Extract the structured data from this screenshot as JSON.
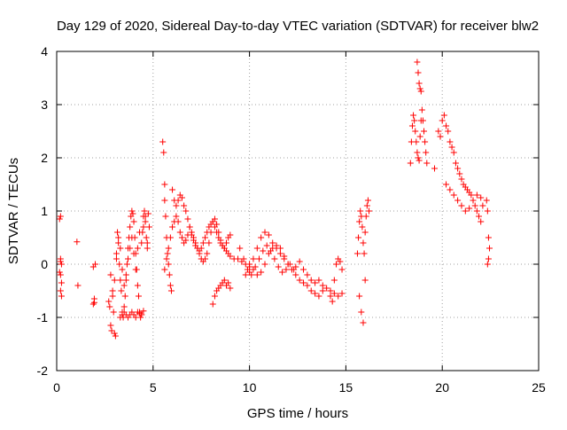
{
  "chart_data": {
    "type": "scatter",
    "title": "Day 129 of 2020, Sidereal Day-to-day VTEC variation (SDTVAR) for receiver blw2",
    "xlabel": "GPS time / hours",
    "ylabel": "SDTVAR / TECUs",
    "xlim": [
      0,
      25
    ],
    "ylim": [
      -2,
      4
    ],
    "xticks": [
      0,
      5,
      10,
      15,
      20,
      25
    ],
    "yticks": [
      -2,
      -1,
      0,
      1,
      2,
      3,
      4
    ],
    "grid": true,
    "marker": "+",
    "series_color": "#ff0000",
    "series": [
      {
        "name": "SDTVAR",
        "x": [
          0.15,
          0.2,
          0.2,
          0.25,
          0.2,
          0.25,
          0.2,
          0.25,
          0.2,
          0.15,
          1.05,
          1.1,
          1.9,
          1.95,
          1.9,
          2.0,
          1.95,
          2.7,
          2.75,
          2.8,
          2.85,
          2.9,
          2.95,
          3.0,
          3.05,
          3.1,
          3.15,
          3.2,
          3.25,
          3.3,
          3.35,
          3.4,
          3.45,
          3.5,
          3.55,
          3.6,
          3.65,
          3.7,
          3.75,
          3.8,
          3.85,
          3.9,
          3.95,
          4.0,
          4.05,
          4.1,
          4.15,
          4.2,
          4.25,
          4.3,
          4.35,
          4.4,
          4.45,
          4.5,
          4.55,
          4.6,
          4.65,
          4.7,
          4.75,
          4.8,
          2.8,
          2.9,
          3.0,
          3.1,
          3.2,
          3.3,
          3.4,
          3.5,
          3.6,
          3.7,
          3.8,
          3.9,
          4.0,
          4.1,
          4.2,
          4.3,
          4.4,
          4.5,
          4.6,
          4.7,
          3.3,
          3.4,
          3.5,
          3.6,
          3.7,
          3.8,
          3.9,
          4.0,
          4.1,
          4.2,
          4.3,
          4.4,
          4.5,
          5.5,
          5.55,
          5.6,
          5.6,
          5.65,
          5.7,
          5.75,
          5.8,
          5.85,
          5.9,
          5.95,
          6.0,
          6.1,
          6.2,
          6.3,
          6.4,
          6.5,
          6.6,
          6.7,
          6.8,
          6.9,
          7.0,
          7.1,
          7.2,
          7.3,
          7.4,
          7.5,
          7.6,
          7.7,
          7.8,
          7.9,
          8.0,
          8.1,
          8.2,
          8.3,
          8.4,
          8.5,
          8.6,
          8.7,
          8.8,
          8.9,
          9.0,
          9.2,
          9.4,
          9.6,
          9.8,
          10.0,
          5.6,
          5.7,
          5.8,
          5.9,
          6.0,
          6.1,
          6.2,
          6.3,
          6.4,
          6.5,
          6.6,
          6.7,
          6.8,
          6.9,
          7.0,
          7.1,
          7.2,
          7.3,
          7.4,
          7.5,
          7.6,
          7.7,
          7.8,
          7.9,
          8.0,
          8.1,
          8.2,
          8.3,
          8.4,
          8.5,
          8.6,
          8.7,
          8.8,
          8.9,
          9.0,
          8.1,
          8.2,
          8.3,
          8.4,
          8.5,
          8.6,
          8.7,
          8.8,
          8.9,
          9.0,
          9.8,
          10.0,
          10.2,
          10.4,
          10.6,
          10.8,
          11.0,
          11.2,
          11.4,
          11.6,
          11.8,
          12.0,
          12.2,
          12.4,
          12.6,
          12.8,
          13.0,
          13.2,
          13.4,
          13.6,
          13.8,
          14.0,
          14.2,
          14.4,
          14.6,
          14.8,
          10.0,
          10.2,
          10.4,
          10.6,
          10.8,
          11.0,
          11.2,
          11.4,
          11.6,
          11.8,
          12.0,
          12.2,
          12.4,
          12.6,
          12.8,
          13.0,
          13.2,
          13.4,
          13.6,
          13.8,
          9.5,
          9.7,
          9.9,
          10.1,
          10.3,
          10.5,
          10.7,
          10.9,
          11.1,
          11.3,
          11.5,
          11.7,
          11.9,
          12.1,
          12.3,
          14.2,
          14.3,
          14.4,
          14.5,
          14.6,
          14.7,
          14.8,
          15.6,
          15.65,
          15.7,
          15.75,
          15.8,
          15.85,
          15.9,
          15.95,
          16.0,
          16.05,
          16.1,
          16.15,
          16.2,
          15.7,
          15.8,
          15.9,
          16.0,
          18.35,
          18.4,
          18.45,
          18.5,
          18.55,
          18.6,
          18.65,
          18.7,
          18.75,
          18.8,
          18.85,
          18.9,
          18.95,
          19.0,
          19.05,
          19.1,
          19.15,
          19.2,
          18.7,
          18.75,
          18.8,
          18.85,
          18.9,
          19.6,
          19.8,
          19.9,
          20.0,
          20.1,
          20.2,
          20.3,
          20.4,
          20.5,
          20.6,
          20.7,
          20.8,
          20.9,
          21.0,
          21.1,
          21.2,
          21.3,
          21.4,
          21.5,
          21.6,
          21.7,
          21.8,
          21.9,
          22.0,
          22.1,
          20.2,
          20.4,
          20.6,
          20.8,
          21.0,
          21.2,
          21.4,
          21.6,
          21.8,
          22.0,
          22.3,
          22.35,
          22.4,
          22.45,
          22.4,
          22.35
        ],
        "y": [
          0.85,
          0.9,
          0.1,
          0.0,
          -0.2,
          -0.35,
          -0.5,
          -0.6,
          0.05,
          -0.15,
          0.42,
          -0.4,
          -0.05,
          -0.65,
          -0.75,
          0.0,
          -0.72,
          -0.7,
          -0.8,
          -1.15,
          -1.25,
          -0.6,
          -0.9,
          -1.3,
          -1.35,
          0.1,
          0.6,
          0.4,
          0.0,
          -0.3,
          -0.5,
          -0.9,
          -1.0,
          -0.8,
          -0.6,
          -0.3,
          0.0,
          0.3,
          0.5,
          0.7,
          0.9,
          1.0,
          0.95,
          0.8,
          0.5,
          0.2,
          -0.1,
          -0.4,
          -0.6,
          -0.9,
          -1.0,
          -0.95,
          0.6,
          0.9,
          1.0,
          0.8,
          0.5,
          0.3,
          0.95,
          0.7,
          -0.2,
          -0.5,
          -0.3,
          0.2,
          0.5,
          0.3,
          -0.1,
          -0.4,
          -0.2,
          0.1,
          0.3,
          0.5,
          0.2,
          -0.1,
          0.3,
          0.6,
          0.4,
          0.7,
          0.9,
          0.4,
          -1.0,
          -0.95,
          -0.9,
          -0.95,
          -1.0,
          -0.95,
          -0.9,
          -0.95,
          -1.0,
          -0.9,
          -0.92,
          -0.95,
          -0.88,
          2.3,
          2.1,
          1.5,
          1.2,
          0.9,
          0.5,
          0.2,
          0.0,
          -0.2,
          -0.4,
          -0.5,
          1.4,
          1.2,
          1.1,
          1.2,
          1.3,
          1.25,
          1.1,
          1.0,
          0.85,
          0.7,
          0.55,
          0.45,
          0.35,
          0.3,
          0.25,
          0.3,
          0.4,
          0.5,
          0.6,
          0.7,
          0.75,
          0.8,
          0.7,
          0.6,
          0.5,
          0.4,
          0.35,
          0.3,
          0.25,
          0.2,
          0.15,
          0.1,
          0.1,
          0.05,
          0.0,
          -0.05,
          -0.1,
          0.1,
          0.3,
          0.5,
          0.7,
          0.8,
          0.9,
          0.8,
          0.6,
          0.5,
          0.4,
          0.45,
          0.55,
          0.7,
          0.6,
          0.5,
          0.4,
          0.3,
          0.2,
          0.1,
          0.05,
          0.1,
          0.2,
          0.4,
          0.6,
          0.8,
          0.85,
          0.75,
          0.6,
          0.45,
          0.35,
          0.3,
          0.4,
          0.5,
          0.55,
          -0.75,
          -0.6,
          -0.5,
          -0.45,
          -0.4,
          -0.35,
          -0.3,
          -0.4,
          -0.35,
          -0.45,
          -0.2,
          -0.15,
          0.1,
          0.3,
          0.5,
          0.6,
          0.55,
          0.4,
          0.3,
          0.2,
          0.1,
          0.0,
          -0.1,
          -0.2,
          -0.3,
          -0.35,
          -0.4,
          -0.5,
          -0.55,
          -0.6,
          -0.5,
          -0.45,
          -0.5,
          -0.55,
          -0.6,
          -0.55,
          0.0,
          -0.1,
          -0.2,
          -0.15,
          0.0,
          0.2,
          0.3,
          0.35,
          0.3,
          0.15,
          0.0,
          -0.1,
          -0.05,
          0.05,
          -0.1,
          -0.2,
          -0.3,
          -0.35,
          -0.3,
          -0.4,
          0.3,
          0.1,
          -0.1,
          -0.2,
          -0.05,
          0.1,
          0.25,
          0.35,
          0.25,
          0.1,
          -0.05,
          -0.15,
          -0.1,
          0.0,
          -0.1,
          -0.6,
          -0.7,
          -0.3,
          0.0,
          0.1,
          0.05,
          -0.1,
          0.2,
          0.5,
          0.8,
          1.0,
          0.9,
          0.7,
          0.4,
          0.2,
          0.6,
          0.9,
          1.1,
          1.2,
          1.0,
          -0.6,
          -0.9,
          -1.1,
          -0.3,
          1.9,
          2.3,
          2.6,
          2.8,
          2.7,
          2.5,
          2.3,
          2.1,
          2.0,
          1.95,
          2.4,
          2.7,
          2.9,
          2.7,
          2.5,
          2.3,
          2.1,
          1.9,
          3.8,
          3.6,
          3.4,
          3.3,
          3.25,
          1.8,
          2.5,
          2.4,
          2.7,
          2.8,
          2.6,
          2.5,
          2.3,
          2.2,
          2.1,
          1.9,
          1.8,
          1.7,
          1.6,
          1.5,
          1.45,
          1.4,
          1.35,
          1.3,
          1.2,
          1.1,
          1.0,
          0.9,
          0.8,
          1.1,
          1.5,
          1.4,
          1.3,
          1.2,
          1.1,
          1.0,
          1.05,
          1.2,
          1.3,
          1.25,
          1.2,
          1.0,
          0.5,
          0.3,
          0.1,
          0.0
        ]
      }
    ]
  }
}
